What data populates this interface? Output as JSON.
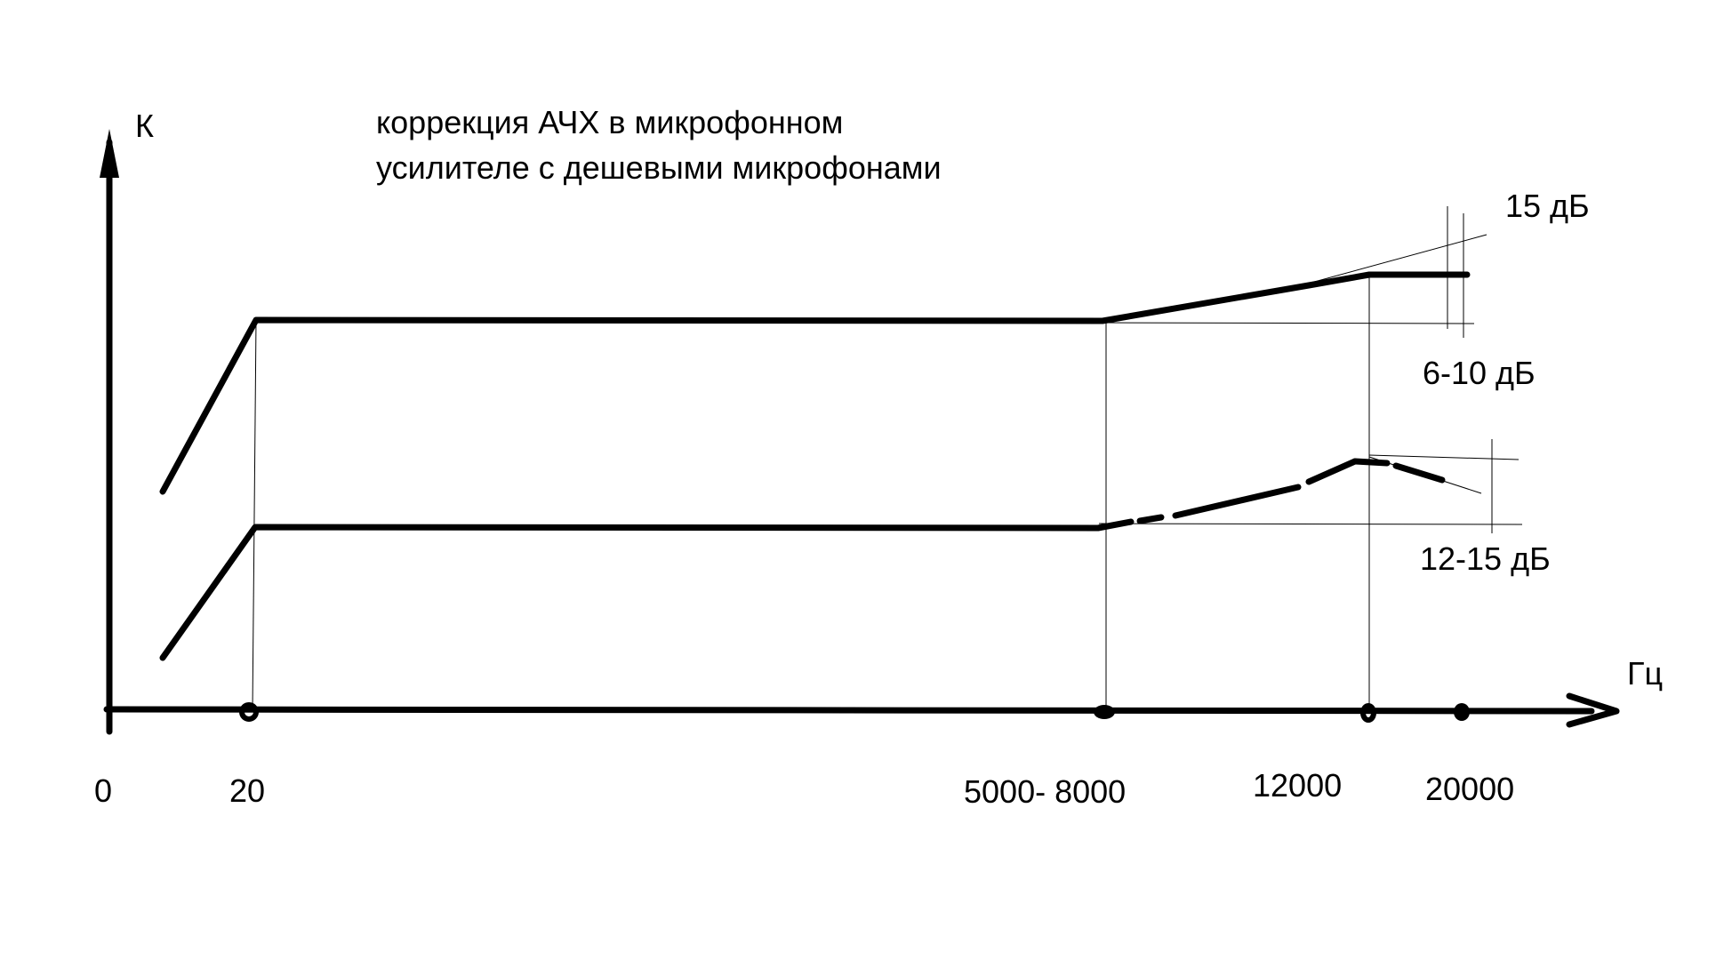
{
  "title": {
    "line1": "коррекция АЧХ в микрофонном",
    "line2": "усилителе с дешевыми микрофонами"
  },
  "axes": {
    "y_label": "К",
    "x_label": "Гц",
    "ticks": [
      "0",
      "20",
      "5000- 8000",
      "12000",
      "20000"
    ]
  },
  "annotations": {
    "upper_top": "15 дБ",
    "upper_bottom": "6-10 дБ",
    "lower": "12-15 дБ"
  }
}
